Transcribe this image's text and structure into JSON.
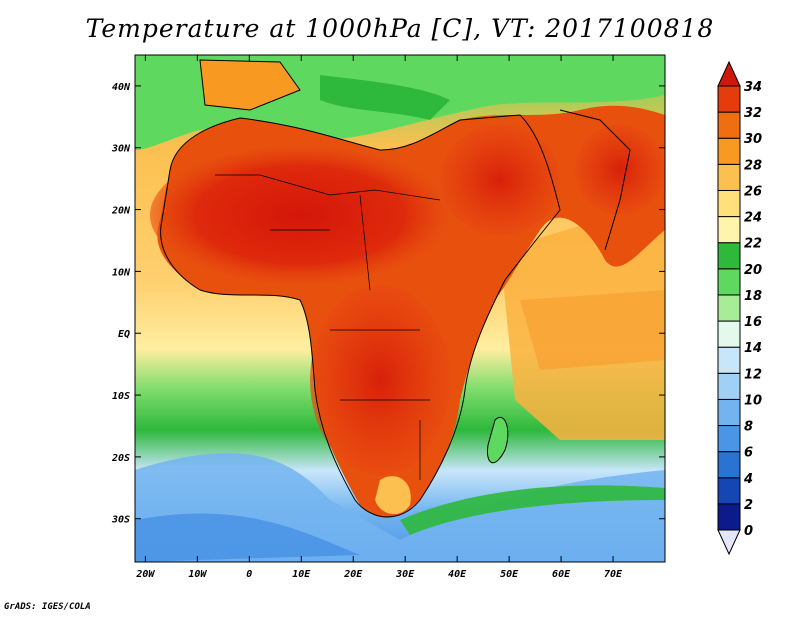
{
  "title": "Temperature at 1000hPa [C], VT: 2017100818",
  "credit": "GrADS: IGES/COLA",
  "map": {
    "lon_range": [
      -22,
      80
    ],
    "lat_range": [
      -37,
      45
    ],
    "lon_ticks": [
      {
        "value": -20,
        "label": "20W"
      },
      {
        "value": -10,
        "label": "10W"
      },
      {
        "value": 0,
        "label": "0"
      },
      {
        "value": 10,
        "label": "10E"
      },
      {
        "value": 20,
        "label": "20E"
      },
      {
        "value": 30,
        "label": "30E"
      },
      {
        "value": 40,
        "label": "40E"
      },
      {
        "value": 50,
        "label": "50E"
      },
      {
        "value": 60,
        "label": "60E"
      },
      {
        "value": 70,
        "label": "70E"
      }
    ],
    "lat_ticks": [
      {
        "value": 40,
        "label": "40N"
      },
      {
        "value": 30,
        "label": "30N"
      },
      {
        "value": 20,
        "label": "20N"
      },
      {
        "value": 10,
        "label": "10N"
      },
      {
        "value": 0,
        "label": "EQ"
      },
      {
        "value": -10,
        "label": "10S"
      },
      {
        "value": -20,
        "label": "20S"
      },
      {
        "value": -30,
        "label": "30S"
      }
    ]
  },
  "colorbar": {
    "levels": [
      0,
      2,
      4,
      6,
      8,
      10,
      12,
      14,
      16,
      18,
      20,
      22,
      24,
      26,
      28,
      30,
      32,
      34
    ],
    "labels": [
      "0",
      "2",
      "4",
      "6",
      "8",
      "10",
      "12",
      "14",
      "16",
      "18",
      "20",
      "22",
      "24",
      "26",
      "28",
      "30",
      "32",
      "34"
    ],
    "colors": [
      "#0d1a8c",
      "#1446b4",
      "#2a73d2",
      "#4a95e6",
      "#73b4f0",
      "#a0d0f6",
      "#c8e6fa",
      "#e4f8ec",
      "#a8ec98",
      "#5fd860",
      "#2eb83c",
      "#fff4ac",
      "#ffe07a",
      "#fcc050",
      "#f89a22",
      "#f06e12",
      "#e43c0c",
      "#d0180a"
    ],
    "under_color": "#e6e6fa",
    "over_color": "#d0180a"
  }
}
